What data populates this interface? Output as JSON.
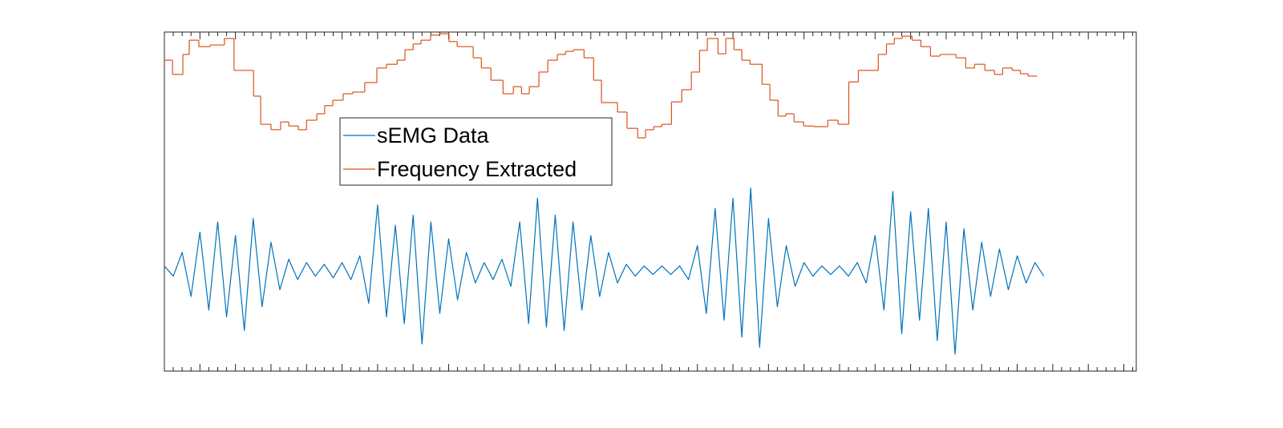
{
  "chart_data": {
    "type": "line",
    "xlim": [
      0,
      27.35
    ],
    "ylim": [
      0,
      100
    ],
    "xticks": [
      0,
      1,
      2,
      3,
      4,
      5,
      6,
      7,
      8,
      9,
      10,
      11,
      12,
      13,
      14,
      15,
      16,
      17,
      18,
      19,
      20,
      21,
      22,
      23,
      24,
      25,
      26,
      27
    ],
    "series": [
      {
        "name": "sEMG Data",
        "color": "#0072bd",
        "drawstyle": "default",
        "x": [
          0,
          0.25,
          0.5,
          0.75,
          1,
          1.25,
          1.5,
          1.75,
          2,
          2.25,
          2.5,
          2.75,
          3,
          3.25,
          3.5,
          3.75,
          4,
          4.25,
          4.5,
          4.75,
          5,
          5.25,
          5.5,
          5.75,
          6,
          6.25,
          6.5,
          6.75,
          7,
          7.25,
          7.5,
          7.75,
          8,
          8.25,
          8.5,
          8.75,
          9,
          9.25,
          9.5,
          9.75,
          10,
          10.25,
          10.5,
          10.75,
          11,
          11.25,
          11.5,
          11.75,
          12,
          12.25,
          12.5,
          12.75,
          13,
          13.25,
          13.5,
          13.75,
          14,
          14.25,
          14.5,
          14.75,
          15,
          15.25,
          15.5,
          15.75,
          16,
          16.25,
          16.5,
          16.75,
          17,
          17.25,
          17.5,
          17.75,
          18,
          18.25,
          18.5,
          18.75,
          19,
          19.25,
          19.5,
          19.75,
          20,
          20.25,
          20.5,
          20.75,
          21,
          21.25,
          21.5,
          21.75,
          22,
          22.25,
          22.5,
          22.75,
          23,
          23.25,
          23.5,
          23.75,
          24,
          24.25,
          24.5,
          24.75
        ],
        "values": [
          31,
          28,
          35,
          22,
          41,
          18,
          44,
          16,
          40,
          12,
          45,
          19,
          38,
          24,
          33,
          27,
          32,
          28,
          31.5,
          27.5,
          32,
          27,
          34,
          20,
          49,
          16,
          43,
          14,
          46,
          8,
          44,
          17,
          39,
          21,
          35,
          26,
          32,
          27,
          33,
          25,
          44,
          14,
          51,
          13,
          46,
          12,
          44,
          18,
          40,
          22,
          35,
          26,
          31.5,
          28,
          31,
          28.5,
          31,
          28.5,
          31,
          27,
          37,
          17,
          48,
          15,
          51,
          10,
          54,
          7,
          45,
          19,
          37,
          25,
          32,
          28,
          31,
          28.5,
          31,
          28,
          32,
          26,
          40,
          18,
          53,
          11,
          47,
          15,
          48,
          9,
          44,
          5,
          42,
          18,
          38,
          22,
          36,
          24,
          34,
          26,
          32,
          28
        ]
      },
      {
        "name": "Frequency Extracted",
        "color": "#d95319",
        "drawstyle": "steps-post",
        "x": [
          0,
          0.23,
          0.52,
          0.7,
          0.97,
          1.29,
          1.69,
          1.96,
          2.51,
          2.71,
          3,
          3.27,
          3.5,
          3.77,
          4,
          4.29,
          4.51,
          4.74,
          5.03,
          5.3,
          5.64,
          5.98,
          6.25,
          6.55,
          6.77,
          7,
          7.22,
          7.49,
          7.74,
          8.01,
          8.24,
          8.69,
          8.92,
          9.19,
          9.53,
          9.82,
          10.05,
          10.27,
          10.54,
          10.79,
          11.06,
          11.29,
          11.51,
          11.81,
          12.08,
          12.3,
          12.75,
          13.02,
          13.32,
          13.54,
          13.77,
          14,
          14.27,
          14.56,
          14.83,
          15.06,
          15.28,
          15.58,
          15.8,
          16.03,
          16.25,
          16.48,
          16.82,
          17.04,
          17.27,
          17.49,
          17.72,
          17.99,
          18.28,
          18.67,
          18.96,
          19.26,
          19.53,
          19.8,
          20.09,
          20.32,
          20.54,
          20.77,
          21.04,
          21.29,
          21.56,
          21.83,
          22.28,
          22.55,
          22.8,
          23.09,
          23.36,
          23.59,
          23.86,
          24.09,
          24.31,
          24.56
        ],
        "values": [
          91.7,
          87.5,
          93.4,
          97.6,
          95.7,
          96.2,
          98.1,
          88.7,
          81.1,
          72.8,
          71.2,
          73.5,
          72.3,
          71.2,
          74,
          75.9,
          78.3,
          79.9,
          81.8,
          82.3,
          85.1,
          89.4,
          90.5,
          91.7,
          94.8,
          96.5,
          97.6,
          99.1,
          99.5,
          97.2,
          95.7,
          92.4,
          89.4,
          85.8,
          81.8,
          83.9,
          81.8,
          83.9,
          88.2,
          91.7,
          93.4,
          94.3,
          94.8,
          92.4,
          85.8,
          79.2,
          76.4,
          71.6,
          68.8,
          71.2,
          72.1,
          72.8,
          79.4,
          83,
          88.2,
          94.6,
          98.1,
          93.6,
          98.1,
          94.8,
          91.7,
          90.5,
          84.6,
          79.9,
          75.2,
          75.9,
          73.5,
          72.3,
          72.1,
          74,
          72.8,
          85.3,
          88.7,
          88.7,
          93.4,
          96.5,
          98.1,
          98.8,
          97.6,
          95.7,
          92.9,
          93.4,
          92.4,
          89.4,
          90.5,
          88.7,
          87.5,
          89.4,
          88.7,
          87.7,
          87,
          87
        ]
      }
    ]
  }
}
